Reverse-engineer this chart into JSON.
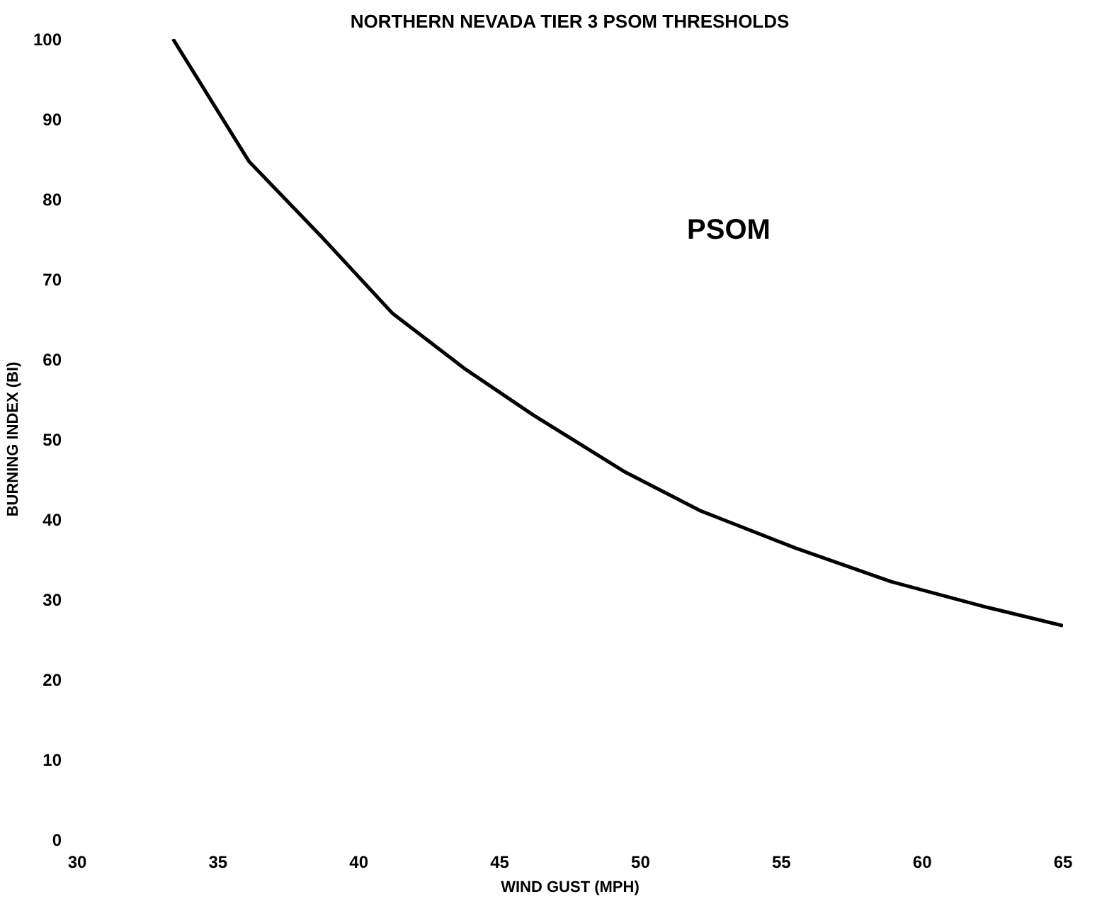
{
  "chart_data": {
    "type": "line",
    "title": "NORTHERN NEVADA TIER 3 PSOM THRESHOLDS",
    "xlabel": "WIND GUST (MPH)",
    "ylabel": "BURNING INDEX (BI)",
    "x": [
      33.4,
      36.1,
      38.7,
      41.2,
      43.8,
      46.2,
      49.4,
      52.1,
      55.5,
      58.9,
      62.3,
      65
    ],
    "series": [
      {
        "color": "#000000",
        "values": [
          100,
          84.7,
          75.2,
          65.7,
          58.7,
          53.0,
          46.0,
          41.1,
          36.4,
          32.2,
          29.0,
          26.7
        ]
      }
    ],
    "xlim": [
      30,
      65
    ],
    "ylim": [
      0,
      100
    ],
    "xticks": [
      30,
      35,
      40,
      45,
      50,
      55,
      60,
      65
    ],
    "yticks": [
      0,
      10,
      20,
      30,
      40,
      50,
      60,
      70,
      80,
      90,
      100
    ],
    "grid": false,
    "marker": "none",
    "line_style": "solid",
    "annotations": [
      "PSOM"
    ]
  }
}
